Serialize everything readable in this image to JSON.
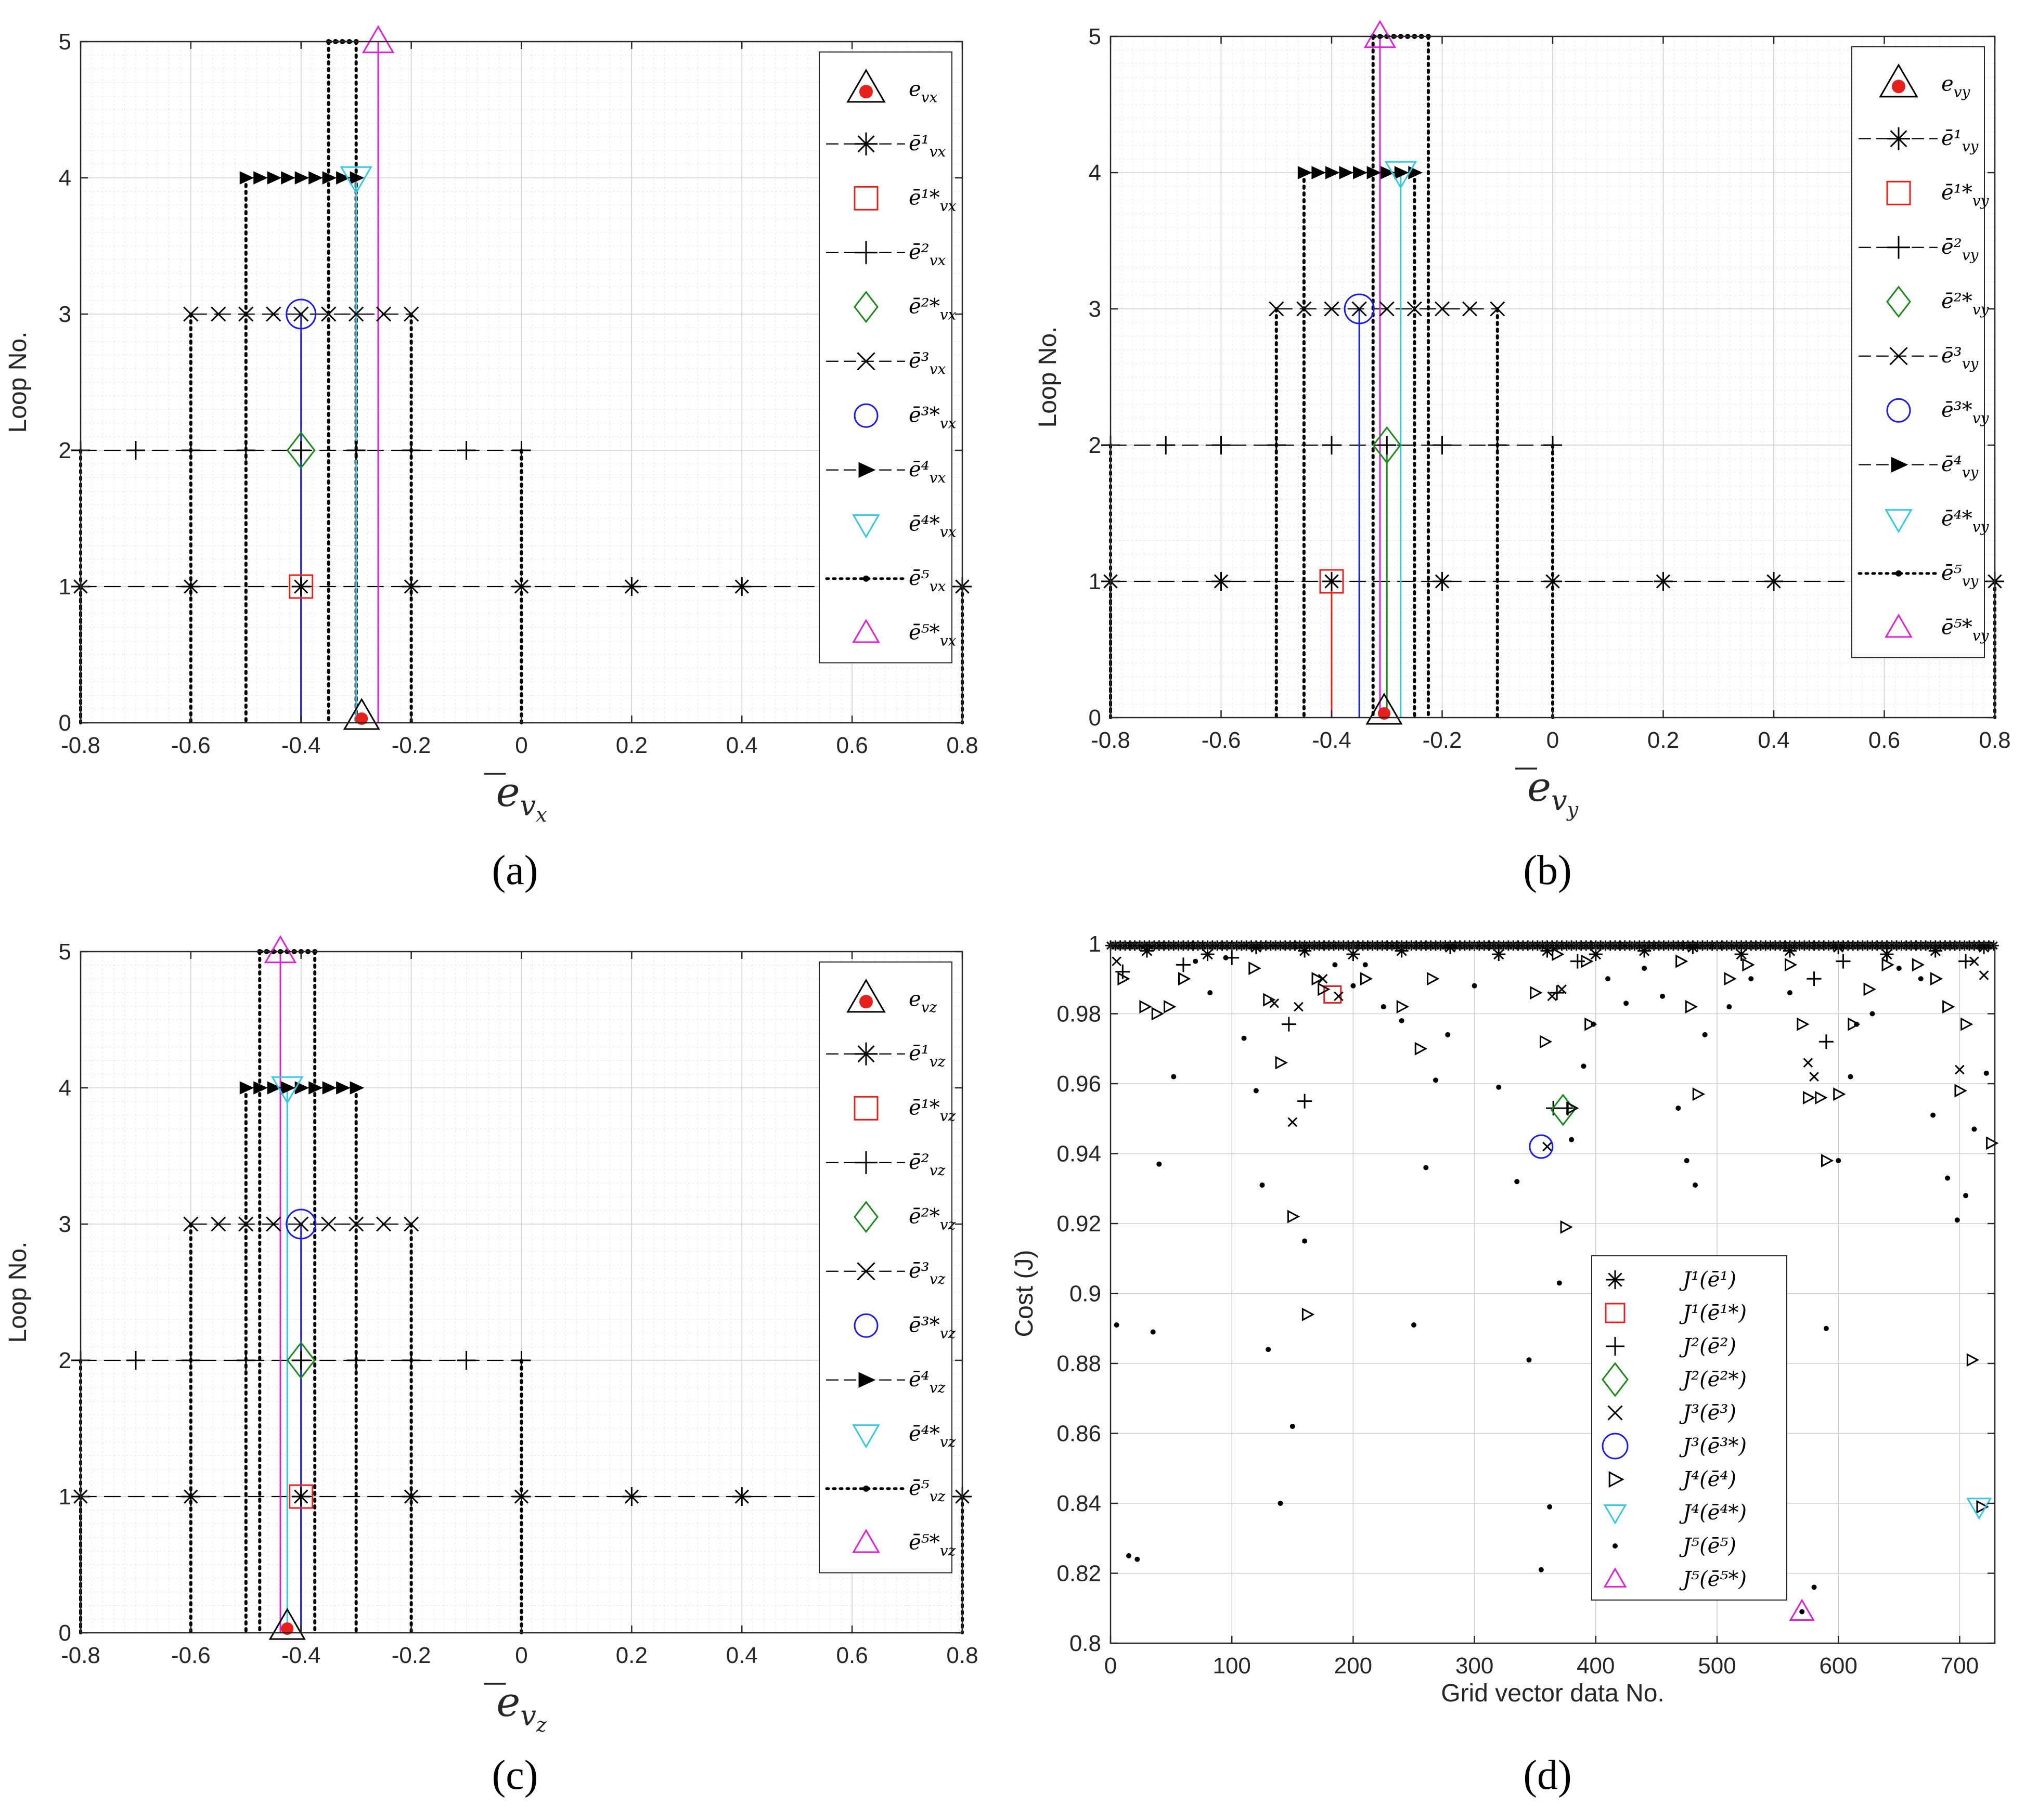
{
  "chart_data": [
    {
      "type": "line",
      "panel": "(a)",
      "xlabel_base": "e",
      "xlabel_sub": "v",
      "xlabel_subsub": "x",
      "ylabel": "Loop No.",
      "xlim": [
        -0.8,
        0.8
      ],
      "ylim": [
        0,
        5
      ],
      "xticks": [
        "-0.8",
        "-0.6",
        "-0.4",
        "-0.2",
        "0",
        "0.2",
        "0.4",
        "0.6",
        "0.8"
      ],
      "yticks": [
        "0",
        "1",
        "2",
        "3",
        "4",
        "5"
      ],
      "grid": true,
      "legend_position": "top-right",
      "legend_sub": "x",
      "loops": [
        {
          "y": 1,
          "min": -0.8,
          "max": 0.8,
          "step": 0.2,
          "best": -0.4
        },
        {
          "y": 2,
          "min": -0.8,
          "max": 0,
          "step": 0.1,
          "best": -0.4
        },
        {
          "y": 3,
          "min": -0.6,
          "max": -0.2,
          "step": 0.05,
          "best": -0.4
        },
        {
          "y": 4,
          "min": -0.5,
          "max": -0.3,
          "step": 0.025,
          "best": -0.3
        },
        {
          "y": 5,
          "min": -0.35,
          "max": -0.3,
          "step": 0.0125,
          "best": -0.26
        }
      ],
      "true_value": -0.29
    },
    {
      "type": "line",
      "panel": "(b)",
      "xlabel_base": "e",
      "xlabel_sub": "v",
      "xlabel_subsub": "y",
      "ylabel": "Loop No.",
      "xlim": [
        -0.8,
        0.8
      ],
      "ylim": [
        0,
        5
      ],
      "xticks": [
        "-0.8",
        "-0.6",
        "-0.4",
        "-0.2",
        "0",
        "0.2",
        "0.4",
        "0.6",
        "0.8"
      ],
      "yticks": [
        "0",
        "1",
        "2",
        "3",
        "4",
        "5"
      ],
      "grid": true,
      "legend_position": "top-right",
      "legend_sub": "y",
      "loops": [
        {
          "y": 1,
          "min": -0.8,
          "max": 0.8,
          "step": 0.2,
          "best": -0.4
        },
        {
          "y": 2,
          "min": -0.8,
          "max": 0,
          "step": 0.1,
          "best": -0.3
        },
        {
          "y": 3,
          "min": -0.5,
          "max": -0.1,
          "step": 0.05,
          "best": -0.35
        },
        {
          "y": 4,
          "min": -0.45,
          "max": -0.25,
          "step": 0.025,
          "best": -0.275
        },
        {
          "y": 5,
          "min": -0.325,
          "max": -0.225,
          "step": 0.0125,
          "best": -0.3125
        }
      ],
      "true_value": -0.305
    },
    {
      "type": "line",
      "panel": "(c)",
      "xlabel_base": "e",
      "xlabel_sub": "v",
      "xlabel_subsub": "z",
      "ylabel": "Loop No.",
      "xlim": [
        -0.8,
        0.8
      ],
      "ylim": [
        0,
        5
      ],
      "xticks": [
        "-0.8",
        "-0.6",
        "-0.4",
        "-0.2",
        "0",
        "0.2",
        "0.4",
        "0.6",
        "0.8"
      ],
      "yticks": [
        "0",
        "1",
        "2",
        "3",
        "4",
        "5"
      ],
      "grid": true,
      "legend_position": "top-right",
      "legend_sub": "z",
      "loops": [
        {
          "y": 1,
          "min": -0.8,
          "max": 0.8,
          "step": 0.2,
          "best": -0.4
        },
        {
          "y": 2,
          "min": -0.8,
          "max": 0,
          "step": 0.1,
          "best": -0.4
        },
        {
          "y": 3,
          "min": -0.6,
          "max": -0.2,
          "step": 0.05,
          "best": -0.4
        },
        {
          "y": 4,
          "min": -0.5,
          "max": -0.3,
          "step": 0.025,
          "best": -0.425
        },
        {
          "y": 5,
          "min": -0.475,
          "max": -0.375,
          "step": 0.0125,
          "best": -0.4375
        }
      ],
      "true_value": -0.425
    },
    {
      "type": "scatter",
      "panel": "(d)",
      "xlabel": "Grid vector data No.",
      "ylabel": "Cost (J)",
      "xlim": [
        0,
        729
      ],
      "ylim": [
        0.8,
        1.0
      ],
      "xticks": [
        "0",
        "100",
        "200",
        "300",
        "400",
        "500",
        "600",
        "700"
      ],
      "yticks": [
        "0.8",
        "0.82",
        "0.84",
        "0.86",
        "0.88",
        "0.9",
        "0.92",
        "0.94",
        "0.96",
        "0.98",
        "1"
      ],
      "grid": true,
      "legend_position": "bottom-center",
      "series": [
        {
          "name": "J1",
          "marker": "asterisk",
          "points": [
            [
              30,
              0.998
            ],
            [
              80,
              0.997
            ],
            [
              120,
              0.999
            ],
            [
              160,
              0.998
            ],
            [
              200,
              0.997
            ],
            [
              240,
              0.998
            ],
            [
              280,
              0.999
            ],
            [
              320,
              0.997
            ],
            [
              360,
              0.998
            ],
            [
              400,
              0.997
            ],
            [
              440,
              0.998
            ],
            [
              480,
              0.999
            ],
            [
              520,
              0.997
            ],
            [
              560,
              0.998
            ],
            [
              600,
              0.999
            ],
            [
              640,
              0.997
            ],
            [
              680,
              0.998
            ],
            [
              720,
              0.999
            ]
          ]
        },
        {
          "name": "J1*",
          "marker": "square",
          "color": "#e8201c",
          "points": [
            [
              183,
              0.9855
            ]
          ]
        },
        {
          "name": "J2",
          "marker": "plus",
          "points": [
            [
              10,
              0.992
            ],
            [
              60,
              0.994
            ],
            [
              100,
              0.996
            ],
            [
              147,
              0.977
            ],
            [
              160,
              0.955
            ],
            [
              365,
              0.953
            ],
            [
              368,
              0.986
            ],
            [
              377,
              0.953
            ],
            [
              385,
              0.995
            ],
            [
              580,
              0.99
            ],
            [
              590,
              0.972
            ],
            [
              604,
              0.995
            ],
            [
              705,
              0.995
            ]
          ]
        },
        {
          "name": "J2*",
          "marker": "diamond",
          "color": "#1a8a1a",
          "points": [
            [
              373,
              0.9525
            ]
          ]
        },
        {
          "name": "J3",
          "marker": "x",
          "points": [
            [
              5,
              0.995
            ],
            [
              135,
              0.983
            ],
            [
              150,
              0.949
            ],
            [
              155,
              0.982
            ],
            [
              175,
              0.99
            ],
            [
              188,
              0.985
            ],
            [
              360,
              0.942
            ],
            [
              364,
              0.985
            ],
            [
              372,
              0.987
            ],
            [
              575,
              0.966
            ],
            [
              580,
              0.962
            ],
            [
              700,
              0.964
            ],
            [
              712,
              0.995
            ],
            [
              720,
              0.991
            ]
          ]
        },
        {
          "name": "J3*",
          "marker": "circle",
          "color": "#1c1ce8",
          "points": [
            [
              355,
              0.942
            ]
          ]
        },
        {
          "name": "J4",
          "marker": "triangle-right",
          "points": [
            [
              10,
              0.99
            ],
            [
              28,
              0.982
            ],
            [
              38,
              0.98
            ],
            [
              48,
              0.982
            ],
            [
              60,
              0.99
            ],
            [
              118,
              0.993
            ],
            [
              130,
              0.984
            ],
            [
              140,
              0.966
            ],
            [
              150,
              0.922
            ],
            [
              162,
              0.894
            ],
            [
              170,
              0.99
            ],
            [
              175,
              0.987
            ],
            [
              210,
              0.99
            ],
            [
              240,
              0.982
            ],
            [
              255,
              0.97
            ],
            [
              265,
              0.99
            ],
            [
              350,
              0.986
            ],
            [
              358,
              0.972
            ],
            [
              368,
              0.997
            ],
            [
              375,
              0.919
            ],
            [
              380,
              0.953
            ],
            [
              392,
              0.995
            ],
            [
              395,
              0.977
            ],
            [
              470,
              0.995
            ],
            [
              478,
              0.982
            ],
            [
              484,
              0.957
            ],
            [
              510,
              0.99
            ],
            [
              525,
              0.994
            ],
            [
              560,
              0.994
            ],
            [
              570,
              0.977
            ],
            [
              575,
              0.956
            ],
            [
              585,
              0.956
            ],
            [
              590,
              0.938
            ],
            [
              600,
              0.957
            ],
            [
              612,
              0.977
            ],
            [
              625,
              0.987
            ],
            [
              640,
              0.994
            ],
            [
              665,
              0.994
            ],
            [
              680,
              0.99
            ],
            [
              690,
              0.982
            ],
            [
              700,
              0.958
            ],
            [
              705,
              0.977
            ],
            [
              710,
              0.881
            ],
            [
              718,
              0.839
            ],
            [
              726,
              0.943
            ]
          ]
        },
        {
          "name": "J4*",
          "marker": "triangle-down",
          "color": "#33c8e6",
          "points": [
            [
              716,
              0.839
            ]
          ]
        },
        {
          "name": "J5",
          "marker": "dot",
          "points": [
            [
              5,
              0.891
            ],
            [
              15,
              0.825
            ],
            [
              22,
              0.824
            ],
            [
              35,
              0.889
            ],
            [
              40,
              0.937
            ],
            [
              52,
              0.962
            ],
            [
              70,
              0.995
            ],
            [
              82,
              0.986
            ],
            [
              95,
              0.996
            ],
            [
              110,
              0.973
            ],
            [
              120,
              0.958
            ],
            [
              125,
              0.931
            ],
            [
              130,
              0.884
            ],
            [
              140,
              0.84
            ],
            [
              150,
              0.862
            ],
            [
              160,
              0.915
            ],
            [
              185,
              0.994
            ],
            [
              200,
              0.988
            ],
            [
              210,
              0.994
            ],
            [
              225,
              0.982
            ],
            [
              240,
              0.978
            ],
            [
              250,
              0.891
            ],
            [
              260,
              0.936
            ],
            [
              268,
              0.961
            ],
            [
              278,
              0.974
            ],
            [
              300,
              0.988
            ],
            [
              320,
              0.959
            ],
            [
              335,
              0.932
            ],
            [
              345,
              0.881
            ],
            [
              355,
              0.821
            ],
            [
              362,
              0.839
            ],
            [
              370,
              0.903
            ],
            [
              380,
              0.944
            ],
            [
              390,
              0.965
            ],
            [
              398,
              0.977
            ],
            [
              410,
              0.99
            ],
            [
              425,
              0.983
            ],
            [
              440,
              0.993
            ],
            [
              455,
              0.985
            ],
            [
              468,
              0.953
            ],
            [
              475,
              0.938
            ],
            [
              482,
              0.931
            ],
            [
              490,
              0.974
            ],
            [
              510,
              0.982
            ],
            [
              528,
              0.99
            ],
            [
              560,
              0.986
            ],
            [
              570,
              0.809
            ],
            [
              580,
              0.816
            ],
            [
              590,
              0.89
            ],
            [
              600,
              0.938
            ],
            [
              610,
              0.962
            ],
            [
              615,
              0.977
            ],
            [
              628,
              0.98
            ],
            [
              650,
              0.993
            ],
            [
              668,
              0.99
            ],
            [
              678,
              0.951
            ],
            [
              690,
              0.933
            ],
            [
              698,
              0.921
            ],
            [
              705,
              0.928
            ],
            [
              712,
              0.947
            ],
            [
              722,
              0.963
            ]
          ]
        },
        {
          "name": "J5*",
          "marker": "triangle-up",
          "color": "#e020d8",
          "points": [
            [
              570,
              0.809
            ]
          ]
        }
      ]
    }
  ],
  "legend_entries": [
    "e",
    "ē¹",
    "ē¹*",
    "ē²",
    "ē²*",
    "ē³",
    "ē³*",
    "ē⁴",
    "ē⁴*",
    "ē⁵",
    "ē⁵*"
  ],
  "legend_d": [
    "J¹(ē¹)",
    "J¹(ē¹*)",
    "J²(ē²)",
    "J²(ē²*)",
    "J³(ē³)",
    "J³(ē³*)",
    "J⁴(ē⁴)",
    "J⁴(ē⁴*)",
    "J⁵(ē⁵)",
    "J⁵(ē⁵*)"
  ],
  "captions": [
    "(a)",
    "(b)",
    "(c)",
    "(d)"
  ],
  "colors": {
    "loop1": "#e8201c",
    "loop2": "#1a8a1a",
    "loop3": "#1c1ce8",
    "loop4": "#33c8e6",
    "loop5": "#e020d8",
    "true": "#e8201c"
  }
}
